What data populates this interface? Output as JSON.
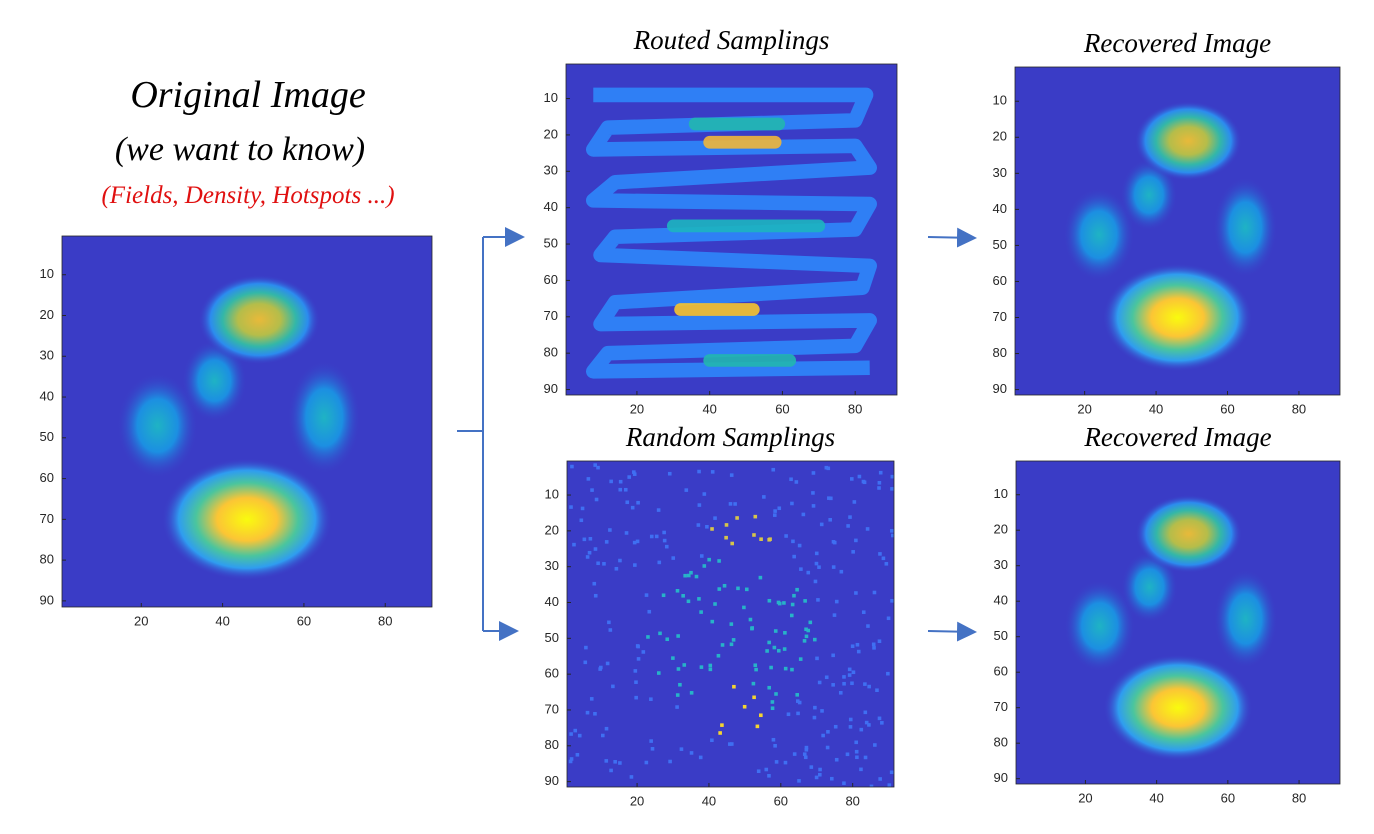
{
  "heading": {
    "line1": "Original Image",
    "line2": "(we want to know)",
    "line3": "(Fields, Density, Hotspots ...)"
  },
  "panels": {
    "original": {
      "xlim": [
        0.5,
        91.5
      ],
      "ylim": [
        0.5,
        91.5
      ],
      "xticks": [
        20,
        40,
        60,
        80
      ],
      "yticks": [
        10,
        20,
        30,
        40,
        50,
        60,
        70,
        80,
        90
      ]
    },
    "routed": {
      "title": "Routed Samplings",
      "xlim": [
        0.5,
        91.5
      ],
      "ylim": [
        0.5,
        91.5
      ],
      "xticks": [
        20,
        40,
        60,
        80
      ],
      "yticks": [
        10,
        20,
        30,
        40,
        50,
        60,
        70,
        80,
        90
      ]
    },
    "recovered_top": {
      "title": "Recovered Image",
      "xlim": [
        0.5,
        91.5
      ],
      "ylim": [
        0.5,
        91.5
      ],
      "xticks": [
        20,
        40,
        60,
        80
      ],
      "yticks": [
        10,
        20,
        30,
        40,
        50,
        60,
        70,
        80,
        90
      ]
    },
    "random": {
      "title": "Random Samplings",
      "xlim": [
        0.5,
        91.5
      ],
      "ylim": [
        0.5,
        91.5
      ],
      "xticks": [
        20,
        40,
        60,
        80
      ],
      "yticks": [
        10,
        20,
        30,
        40,
        50,
        60,
        70,
        80,
        90
      ]
    },
    "recovered_bottom": {
      "title": "Recovered Image",
      "xlim": [
        0.5,
        91.5
      ],
      "ylim": [
        0.5,
        91.5
      ],
      "xticks": [
        20,
        40,
        60,
        80
      ],
      "yticks": [
        10,
        20,
        30,
        40,
        50,
        60,
        70,
        80,
        90
      ]
    }
  }
}
